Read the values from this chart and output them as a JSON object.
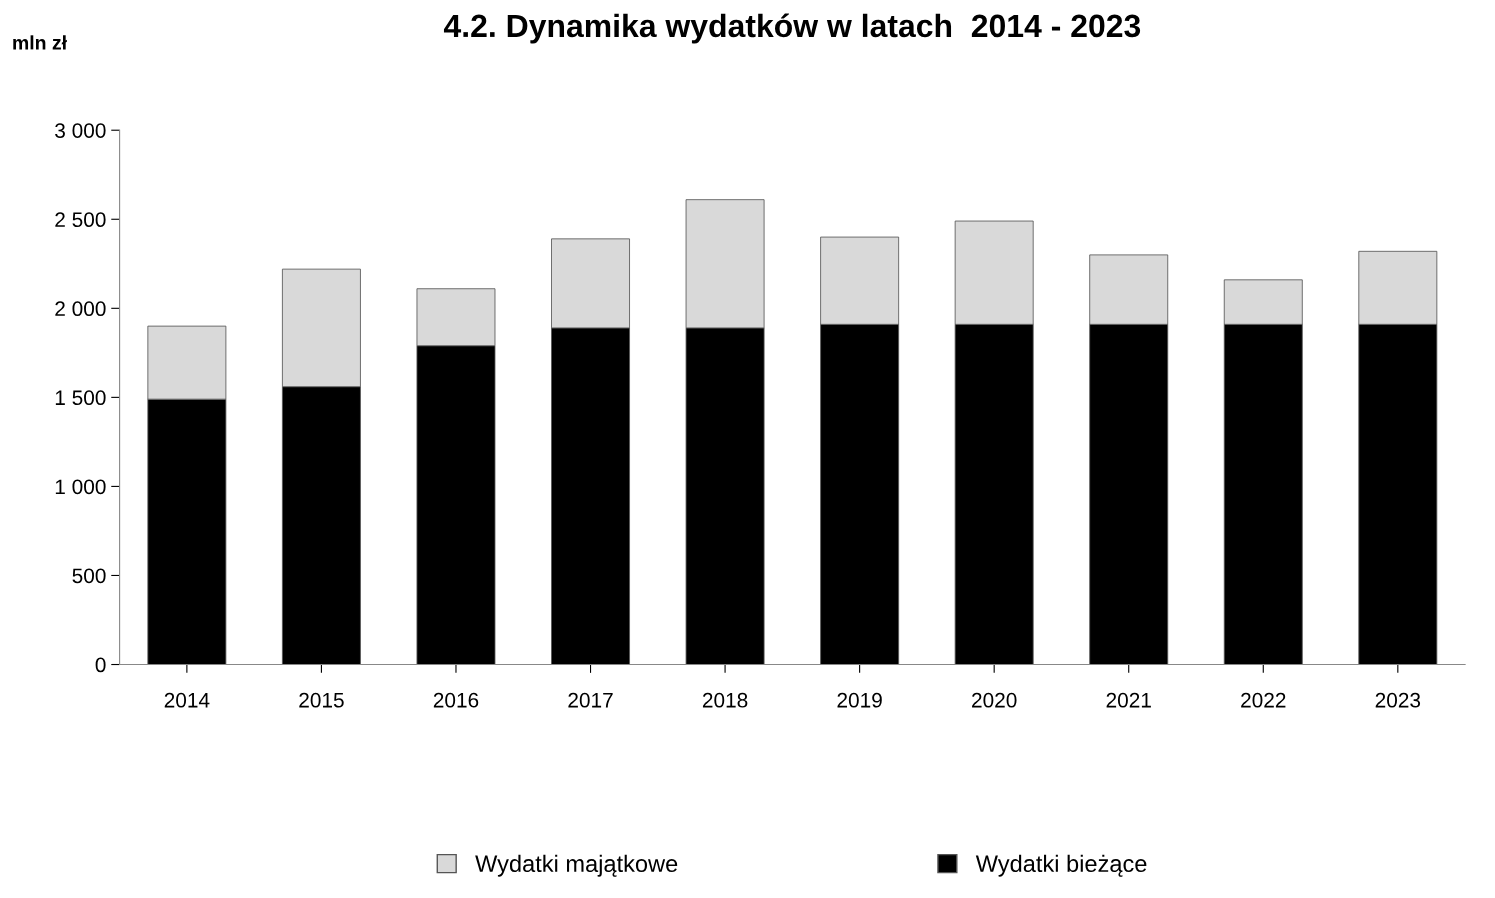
{
  "chart_data": {
    "type": "bar",
    "title": "4.2. Dynamika wydatków w latach  2014 - 2023",
    "ylabel": "mln zł",
    "categories": [
      "2014",
      "2015",
      "2016",
      "2017",
      "2018",
      "2019",
      "2020",
      "2021",
      "2022",
      "2023"
    ],
    "stacked": true,
    "series": [
      {
        "name": "Wydatki bieżące",
        "color": "#000000",
        "values": [
          1490,
          1560,
          1790,
          1890,
          1890,
          1910,
          1910,
          1910,
          1910,
          1910
        ]
      },
      {
        "name": "Wydatki majątkowe",
        "color": "#d9d9d9",
        "values": [
          410,
          660,
          320,
          500,
          720,
          490,
          580,
          390,
          250,
          410
        ]
      }
    ],
    "ylim": [
      0,
      3000
    ],
    "yticks": [
      0,
      500,
      {
        "value": 1000,
        "label": "1 000"
      },
      {
        "value": 1500,
        "label": "1 500"
      },
      {
        "value": 2000,
        "label": "2 000"
      },
      {
        "value": 2500,
        "label": "2 500"
      },
      {
        "value": 3000,
        "label": "3 000"
      }
    ],
    "grid": false,
    "legend": "bottom"
  }
}
